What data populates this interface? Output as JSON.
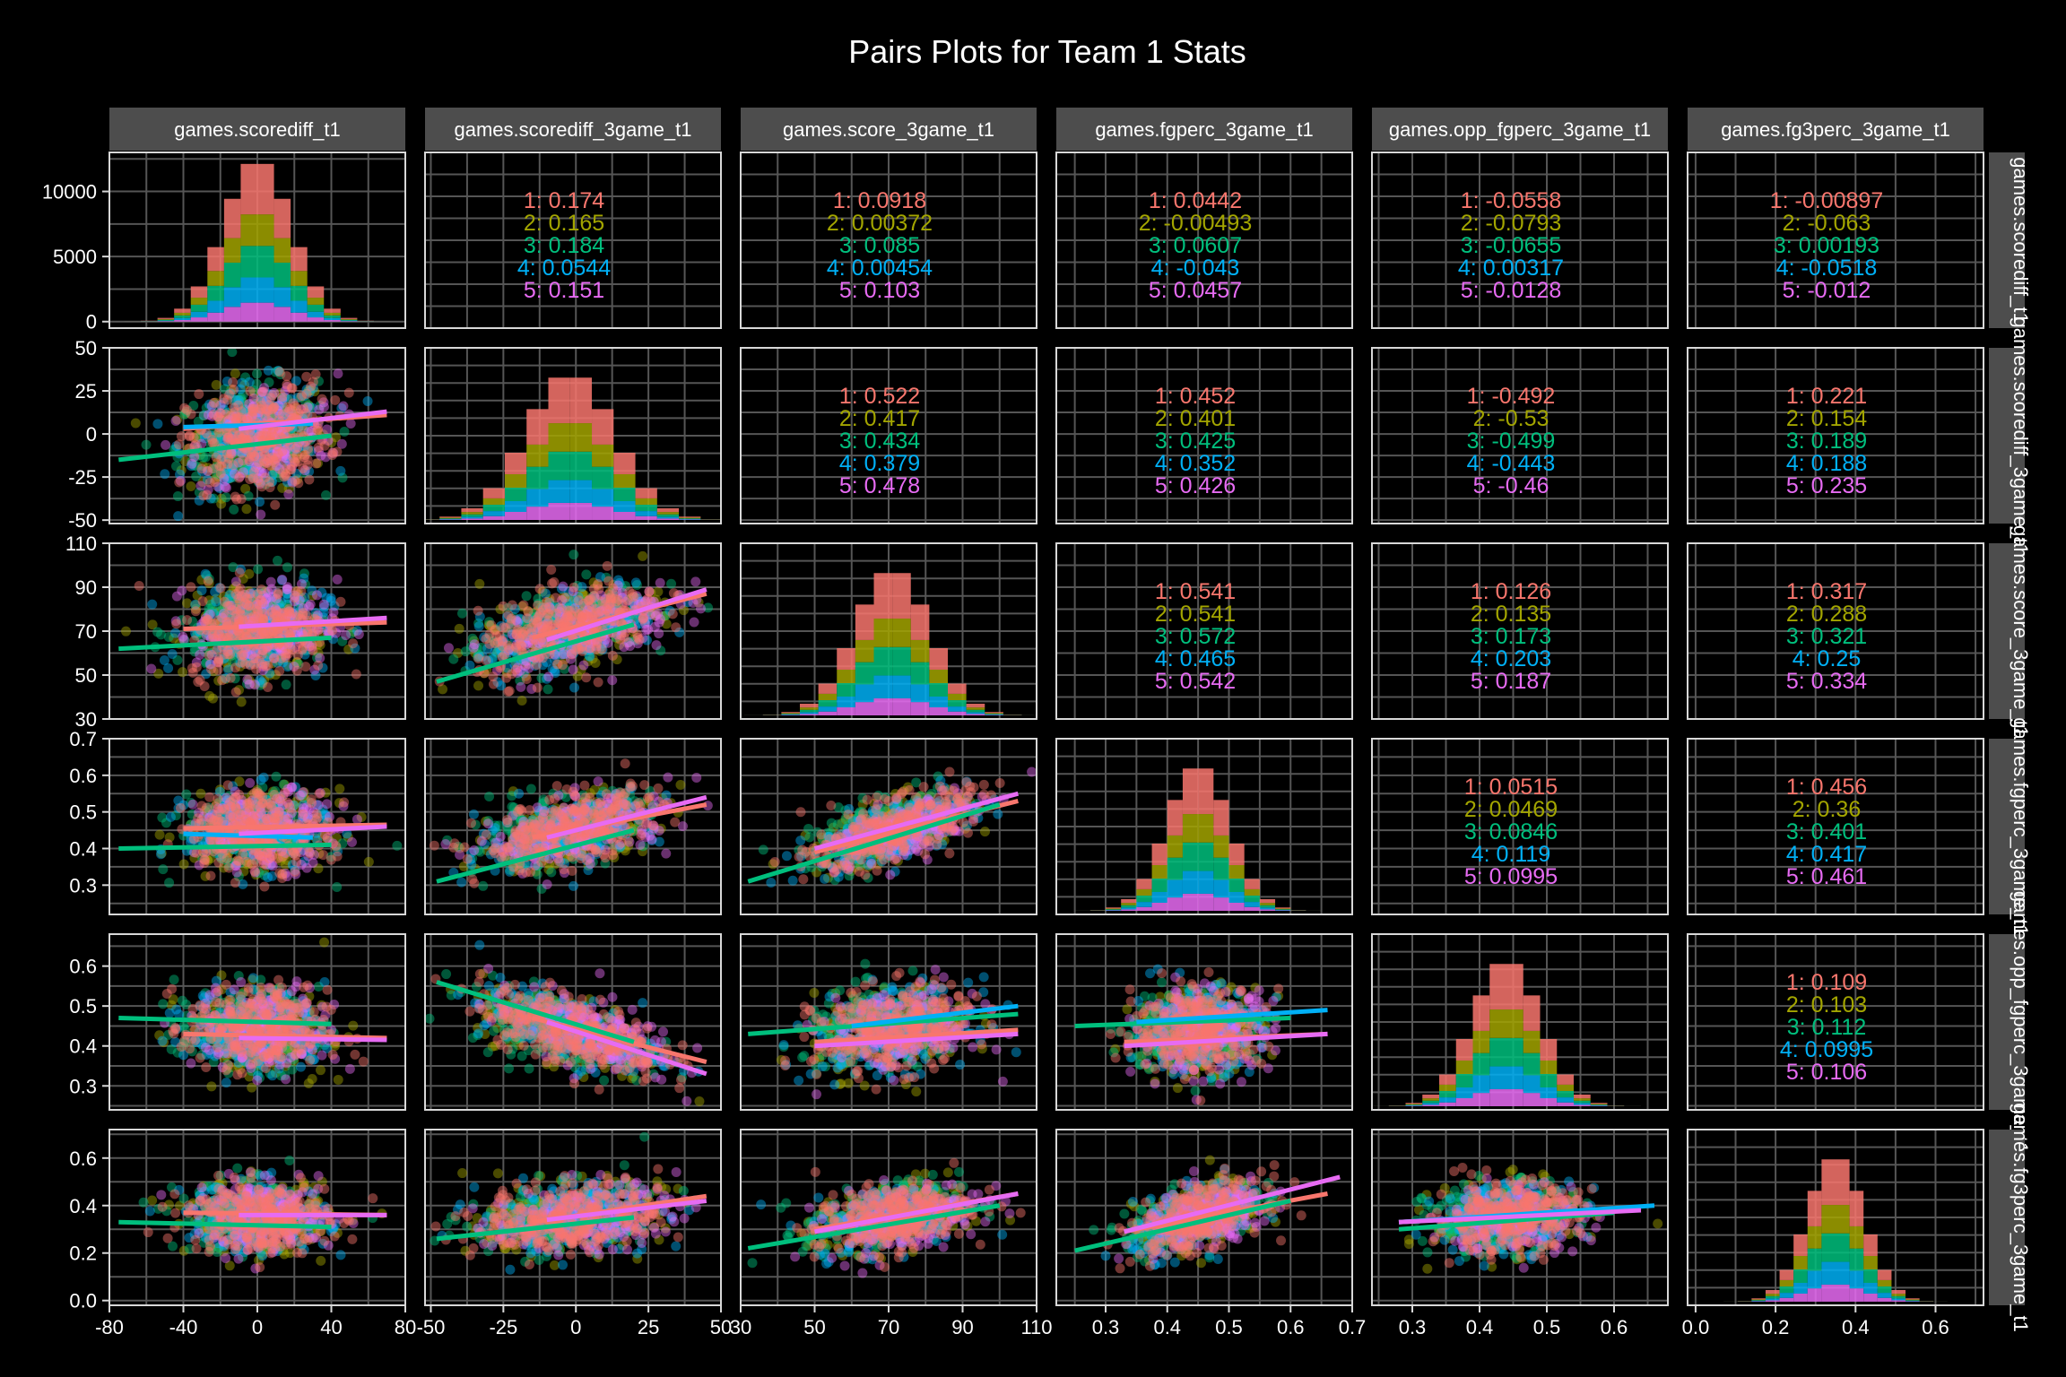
{
  "title": "Pairs Plots for Team 1 Stats",
  "group_colors": [
    "#F8766D",
    "#A3A500",
    "#00BF7D",
    "#00B0F6",
    "#E76BF3"
  ],
  "style": {
    "background": "#000000",
    "panel_border": "#d8d8d8",
    "grid": "#555555",
    "strip_fill": "#4d4d4d",
    "text": "#ffffff"
  },
  "variables": [
    {
      "col_label": "games.scorediff_t1",
      "row_label": "games.scorediff_t1"
    },
    {
      "col_label": "games.scorediff_3game_t1",
      "row_label": "games.scorediff_3game_t1"
    },
    {
      "col_label": "games.score_3game_t1",
      "row_label": "games.score_3game_t1"
    },
    {
      "col_label": "games.fgperc_3game_t1",
      "row_label": "games.fgperc_3game_t1"
    },
    {
      "col_label": "games.opp_fgperc_3game_t1",
      "row_label": "games.opp_fgperc_3game_t1"
    },
    {
      "col_label": "games.fg3perc_3game_t1",
      "row_label": "games.fg3perc_3game_t1"
    }
  ],
  "chart_data": {
    "type": "scatter",
    "title": "Pairs Plots for Team 1 Stats",
    "groups": [
      "1",
      "2",
      "3",
      "4",
      "5"
    ],
    "axes": [
      {
        "range": [
          -80,
          80
        ],
        "ticks": [
          -80,
          -40,
          0,
          40,
          80
        ],
        "tick_labels": [
          "-80",
          "-40",
          "0",
          "40",
          "80"
        ]
      },
      {
        "range": [
          -52,
          50
        ],
        "ticks": [
          -50,
          -25,
          0,
          25,
          50
        ],
        "tick_labels": [
          "-50",
          "-25",
          "0",
          "25",
          "50"
        ]
      },
      {
        "range": [
          30,
          110
        ],
        "ticks": [
          30,
          50,
          70,
          90,
          110
        ],
        "tick_labels": [
          "30",
          "50",
          "70",
          "90",
          "110"
        ]
      },
      {
        "range": [
          0.22,
          0.7
        ],
        "ticks": [
          0.3,
          0.4,
          0.5,
          0.6,
          0.7
        ],
        "tick_labels": [
          "0.3",
          "0.4",
          "0.5",
          "0.6",
          "0.7"
        ]
      },
      {
        "range": [
          0.24,
          0.68
        ],
        "ticks": [
          0.3,
          0.4,
          0.5,
          0.6
        ],
        "tick_labels": [
          "0.3",
          "0.4",
          "0.5",
          "0.6"
        ]
      },
      {
        "range": [
          -0.02,
          0.72
        ],
        "ticks": [
          0.0,
          0.2,
          0.4,
          0.6
        ],
        "tick_labels": [
          "0.0",
          "0.2",
          "0.4",
          "0.6"
        ]
      }
    ],
    "hist_count_axis": {
      "range": [
        -500,
        13000
      ],
      "ticks": [
        0,
        5000,
        10000
      ],
      "tick_labels": [
        "0",
        "5000",
        "10000"
      ]
    },
    "variable_summary": [
      {
        "mean": 0,
        "sd": 18,
        "skew_note": ""
      },
      {
        "mean": -2,
        "sd": 15,
        "skew_note": ""
      },
      {
        "mean": 71,
        "sd": 10,
        "skew_note": ""
      },
      {
        "mean": 0.45,
        "sd": 0.05,
        "skew_note": ""
      },
      {
        "mean": 0.44,
        "sd": 0.05,
        "skew_note": ""
      },
      {
        "mean": 0.35,
        "sd": 0.07,
        "skew_note": ""
      }
    ],
    "correlations": [
      {
        "row": 0,
        "col": 1,
        "values": [
          "0.174",
          "0.165",
          "0.184",
          "0.0544",
          "0.151"
        ]
      },
      {
        "row": 0,
        "col": 2,
        "values": [
          "0.0918",
          "0.00372",
          "0.085",
          "0.00454",
          "0.103"
        ]
      },
      {
        "row": 0,
        "col": 3,
        "values": [
          "0.0442",
          "-0.00493",
          "0.0607",
          "-0.043",
          "0.0457"
        ]
      },
      {
        "row": 0,
        "col": 4,
        "values": [
          "-0.0558",
          "-0.0793",
          "-0.0655",
          "0.00317",
          "-0.0128"
        ]
      },
      {
        "row": 0,
        "col": 5,
        "values": [
          "-0.00897",
          "-0.063",
          "0.00193",
          "-0.0518",
          "-0.012"
        ]
      },
      {
        "row": 1,
        "col": 2,
        "values": [
          "0.522",
          "0.417",
          "0.434",
          "0.379",
          "0.478"
        ]
      },
      {
        "row": 1,
        "col": 3,
        "values": [
          "0.452",
          "0.401",
          "0.425",
          "0.352",
          "0.426"
        ]
      },
      {
        "row": 1,
        "col": 4,
        "values": [
          "-0.492",
          "-0.53",
          "-0.499",
          "-0.443",
          "-0.46"
        ]
      },
      {
        "row": 1,
        "col": 5,
        "values": [
          "0.221",
          "0.154",
          "0.189",
          "0.188",
          "0.235"
        ]
      },
      {
        "row": 2,
        "col": 3,
        "values": [
          "0.541",
          "0.541",
          "0.572",
          "0.465",
          "0.542"
        ]
      },
      {
        "row": 2,
        "col": 4,
        "values": [
          "0.126",
          "0.135",
          "0.173",
          "0.203",
          "0.187"
        ]
      },
      {
        "row": 2,
        "col": 5,
        "values": [
          "0.317",
          "0.288",
          "0.321",
          "0.25",
          "0.334"
        ]
      },
      {
        "row": 3,
        "col": 4,
        "values": [
          "0.0515",
          "0.0469",
          "0.0846",
          "0.119",
          "0.0995"
        ]
      },
      {
        "row": 3,
        "col": 5,
        "values": [
          "0.456",
          "0.36",
          "0.401",
          "0.417",
          "0.461"
        ]
      },
      {
        "row": 4,
        "col": 5,
        "values": [
          "0.109",
          "0.103",
          "0.112",
          "0.0995",
          "0.106"
        ]
      }
    ],
    "regression_lines": [
      {
        "row": 1,
        "col": 0,
        "lines": [
          {
            "group": "1",
            "x": [
              -40,
              70
            ],
            "y": [
              3,
              11
            ]
          },
          {
            "group": "3",
            "x": [
              -75,
              40
            ],
            "y": [
              -15,
              -1
            ]
          },
          {
            "group": "4",
            "x": [
              -40,
              30
            ],
            "y": [
              4,
              6
            ]
          },
          {
            "group": "5",
            "x": [
              -10,
              70
            ],
            "y": [
              3,
              13
            ]
          }
        ]
      },
      {
        "row": 2,
        "col": 0,
        "lines": [
          {
            "group": "1",
            "x": [
              -40,
              70
            ],
            "y": [
              71,
              74
            ]
          },
          {
            "group": "3",
            "x": [
              -75,
              40
            ],
            "y": [
              62,
              67
            ]
          },
          {
            "group": "5",
            "x": [
              -10,
              70
            ],
            "y": [
              72,
              76
            ]
          }
        ]
      },
      {
        "row": 3,
        "col": 0,
        "lines": [
          {
            "group": "1",
            "x": [
              -40,
              70
            ],
            "y": [
              0.455,
              0.465
            ]
          },
          {
            "group": "3",
            "x": [
              -75,
              40
            ],
            "y": [
              0.4,
              0.41
            ]
          },
          {
            "group": "4",
            "x": [
              -40,
              30
            ],
            "y": [
              0.44,
              0.43
            ]
          },
          {
            "group": "5",
            "x": [
              -10,
              70
            ],
            "y": [
              0.44,
              0.46
            ]
          }
        ]
      },
      {
        "row": 4,
        "col": 0,
        "lines": [
          {
            "group": "1",
            "x": [
              -40,
              70
            ],
            "y": [
              0.43,
              0.42
            ]
          },
          {
            "group": "3",
            "x": [
              -75,
              40
            ],
            "y": [
              0.47,
              0.455
            ]
          },
          {
            "group": "5",
            "x": [
              -10,
              70
            ],
            "y": [
              0.42,
              0.415
            ]
          }
        ]
      },
      {
        "row": 5,
        "col": 0,
        "lines": [
          {
            "group": "1",
            "x": [
              -40,
              70
            ],
            "y": [
              0.37,
              0.36
            ]
          },
          {
            "group": "3",
            "x": [
              -75,
              40
            ],
            "y": [
              0.33,
              0.31
            ]
          },
          {
            "group": "5",
            "x": [
              -10,
              70
            ],
            "y": [
              0.36,
              0.36
            ]
          }
        ]
      },
      {
        "row": 2,
        "col": 1,
        "lines": [
          {
            "group": "1",
            "x": [
              -15,
              45
            ],
            "y": [
              67,
              87
            ]
          },
          {
            "group": "3",
            "x": [
              -48,
              20
            ],
            "y": [
              47,
              73
            ]
          },
          {
            "group": "5",
            "x": [
              -10,
              45
            ],
            "y": [
              66,
              89
            ]
          }
        ]
      },
      {
        "row": 3,
        "col": 1,
        "lines": [
          {
            "group": "1",
            "x": [
              -15,
              45
            ],
            "y": [
              0.43,
              0.52
            ]
          },
          {
            "group": "3",
            "x": [
              -48,
              20
            ],
            "y": [
              0.31,
              0.45
            ]
          },
          {
            "group": "5",
            "x": [
              -10,
              45
            ],
            "y": [
              0.43,
              0.54
            ]
          }
        ]
      },
      {
        "row": 4,
        "col": 1,
        "lines": [
          {
            "group": "1",
            "x": [
              -15,
              45
            ],
            "y": [
              0.47,
              0.36
            ]
          },
          {
            "group": "3",
            "x": [
              -48,
              20
            ],
            "y": [
              0.56,
              0.41
            ]
          },
          {
            "group": "5",
            "x": [
              -10,
              45
            ],
            "y": [
              0.46,
              0.33
            ]
          }
        ]
      },
      {
        "row": 5,
        "col": 1,
        "lines": [
          {
            "group": "1",
            "x": [
              -15,
              45
            ],
            "y": [
              0.33,
              0.44
            ]
          },
          {
            "group": "3",
            "x": [
              -48,
              20
            ],
            "y": [
              0.26,
              0.35
            ]
          },
          {
            "group": "5",
            "x": [
              -10,
              45
            ],
            "y": [
              0.34,
              0.42
            ]
          }
        ]
      },
      {
        "row": 3,
        "col": 2,
        "lines": [
          {
            "group": "1",
            "x": [
              50,
              105
            ],
            "y": [
              0.39,
              0.53
            ]
          },
          {
            "group": "3",
            "x": [
              32,
              100
            ],
            "y": [
              0.31,
              0.52
            ]
          },
          {
            "group": "5",
            "x": [
              50,
              105
            ],
            "y": [
              0.4,
              0.55
            ]
          }
        ]
      },
      {
        "row": 4,
        "col": 2,
        "lines": [
          {
            "group": "1",
            "x": [
              50,
              105
            ],
            "y": [
              0.41,
              0.44
            ]
          },
          {
            "group": "3",
            "x": [
              32,
              105
            ],
            "y": [
              0.43,
              0.48
            ]
          },
          {
            "group": "4",
            "x": [
              60,
              105
            ],
            "y": [
              0.45,
              0.5
            ]
          },
          {
            "group": "5",
            "x": [
              50,
              105
            ],
            "y": [
              0.4,
              0.43
            ]
          }
        ]
      },
      {
        "row": 5,
        "col": 2,
        "lines": [
          {
            "group": "1",
            "x": [
              50,
              105
            ],
            "y": [
              0.3,
              0.45
            ]
          },
          {
            "group": "3",
            "x": [
              32,
              100
            ],
            "y": [
              0.22,
              0.4
            ]
          },
          {
            "group": "5",
            "x": [
              50,
              105
            ],
            "y": [
              0.29,
              0.45
            ]
          }
        ]
      },
      {
        "row": 4,
        "col": 3,
        "lines": [
          {
            "group": "1",
            "x": [
              0.33,
              0.66
            ],
            "y": [
              0.41,
              0.43
            ]
          },
          {
            "group": "3",
            "x": [
              0.25,
              0.6
            ],
            "y": [
              0.45,
              0.47
            ]
          },
          {
            "group": "4",
            "x": [
              0.35,
              0.66
            ],
            "y": [
              0.46,
              0.49
            ]
          },
          {
            "group": "5",
            "x": [
              0.33,
              0.66
            ],
            "y": [
              0.4,
              0.43
            ]
          }
        ]
      },
      {
        "row": 5,
        "col": 3,
        "lines": [
          {
            "group": "1",
            "x": [
              0.33,
              0.66
            ],
            "y": [
              0.29,
              0.45
            ]
          },
          {
            "group": "3",
            "x": [
              0.25,
              0.6
            ],
            "y": [
              0.21,
              0.42
            ]
          },
          {
            "group": "5",
            "x": [
              0.33,
              0.68
            ],
            "y": [
              0.29,
              0.52
            ]
          }
        ]
      },
      {
        "row": 5,
        "col": 4,
        "lines": [
          {
            "group": "1",
            "x": [
              0.28,
              0.64
            ],
            "y": [
              0.33,
              0.39
            ]
          },
          {
            "group": "3",
            "x": [
              0.28,
              0.6
            ],
            "y": [
              0.3,
              0.37
            ]
          },
          {
            "group": "4",
            "x": [
              0.28,
              0.66
            ],
            "y": [
              0.33,
              0.4
            ]
          },
          {
            "group": "5",
            "x": [
              0.28,
              0.64
            ],
            "y": [
              0.33,
              0.38
            ]
          }
        ]
      }
    ]
  }
}
